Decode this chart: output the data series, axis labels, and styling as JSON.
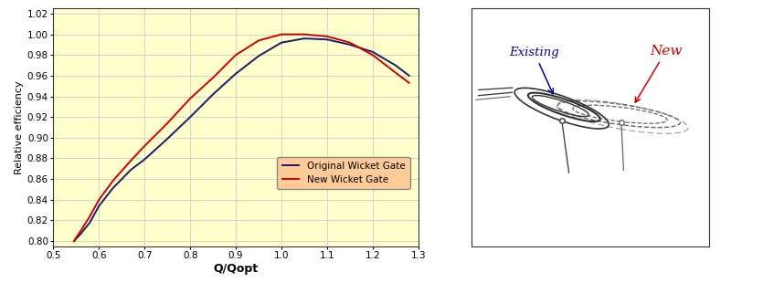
{
  "chart_bg": "#FFFFCC",
  "fig_bg": "#FFFFFF",
  "xlim": [
    0.5,
    1.3
  ],
  "ylim": [
    0.795,
    1.025
  ],
  "xticks": [
    0.5,
    0.6,
    0.7,
    0.8,
    0.9,
    1.0,
    1.1,
    1.2,
    1.3
  ],
  "yticks": [
    0.8,
    0.82,
    0.84,
    0.86,
    0.88,
    0.9,
    0.92,
    0.94,
    0.96,
    0.98,
    1.0,
    1.02
  ],
  "xlabel": "Q/Qopt",
  "ylabel": "Relative efficiency",
  "legend_labels": [
    "Original Wicket Gate",
    "New Wicket Gate"
  ],
  "legend_colors": [
    "#1a1a6e",
    "#CC0000"
  ],
  "legend_bg": "#FFCC99",
  "original_x": [
    0.545,
    0.56,
    0.58,
    0.6,
    0.63,
    0.67,
    0.7,
    0.75,
    0.8,
    0.85,
    0.9,
    0.95,
    1.0,
    1.05,
    1.1,
    1.15,
    1.2,
    1.25,
    1.28
  ],
  "original_y": [
    0.8,
    0.807,
    0.818,
    0.834,
    0.851,
    0.869,
    0.879,
    0.899,
    0.92,
    0.942,
    0.962,
    0.979,
    0.992,
    0.996,
    0.995,
    0.99,
    0.983,
    0.97,
    0.96
  ],
  "new_x": [
    0.545,
    0.56,
    0.58,
    0.6,
    0.63,
    0.67,
    0.7,
    0.75,
    0.8,
    0.85,
    0.9,
    0.95,
    1.0,
    1.02,
    1.05,
    1.1,
    1.15,
    1.2,
    1.25,
    1.28
  ],
  "new_y": [
    0.8,
    0.81,
    0.824,
    0.84,
    0.858,
    0.878,
    0.892,
    0.914,
    0.938,
    0.958,
    0.98,
    0.994,
    1.0,
    1.0,
    1.0,
    0.998,
    0.992,
    0.98,
    0.963,
    0.953
  ],
  "existing_label": "Existing",
  "new_label": "New",
  "existing_label_color": "#000099",
  "new_label_color": "#CC0000",
  "grid_color": "#CCCCCC",
  "sketch_dark": "#333333",
  "sketch_mid": "#666666",
  "sketch_light": "#999999"
}
